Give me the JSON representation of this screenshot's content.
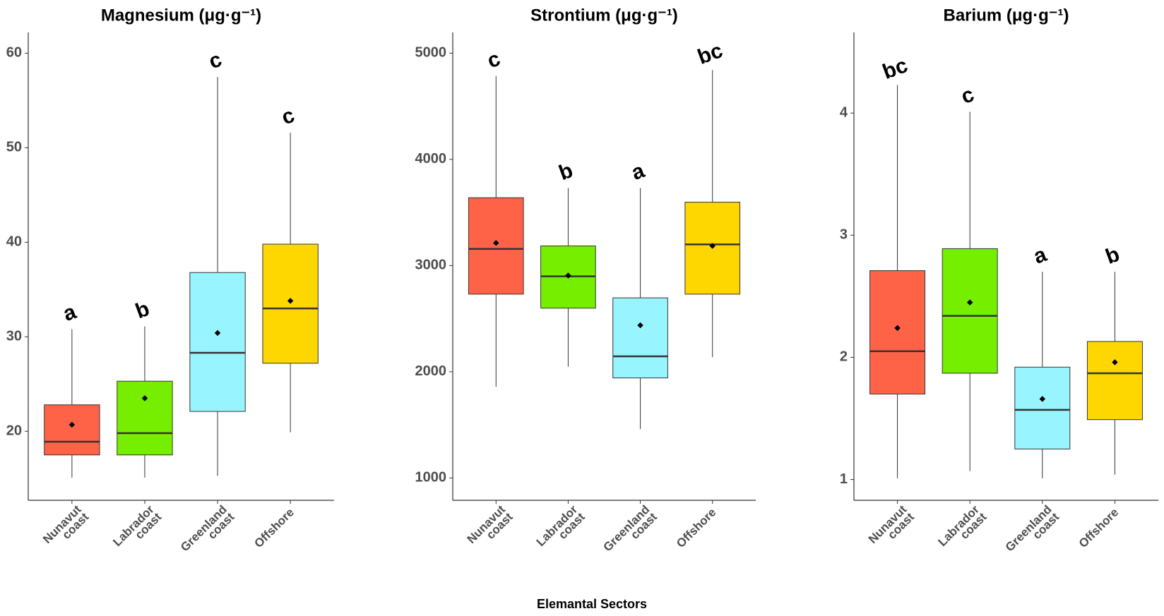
{
  "xlabel": "Elemantal Sectors",
  "chart_data": [
    {
      "type": "box",
      "title": "Magnesium (μg·g⁻¹)",
      "categories": [
        "Nunavut coast",
        "Labrador coast",
        "Greenland coast",
        "Offshore"
      ],
      "colors": [
        "#ff6347",
        "#76ee00",
        "#98f5ff",
        "#ffd700"
      ],
      "min": [
        15.1,
        15.1,
        15.3,
        19.9
      ],
      "q1": [
        17.5,
        17.5,
        22.1,
        27.2
      ],
      "median": [
        18.9,
        19.8,
        28.3,
        33.0
      ],
      "q3": [
        22.8,
        25.3,
        36.8,
        39.8
      ],
      "max": [
        30.8,
        31.1,
        57.5,
        51.6
      ],
      "mean": [
        20.7,
        23.5,
        30.4,
        33.8
      ],
      "letters": [
        "a",
        "b",
        "c",
        "c"
      ],
      "ylim": [
        12.7,
        62.2
      ],
      "yticks": [
        20,
        30,
        40,
        50,
        60
      ]
    },
    {
      "type": "box",
      "title": "Strontium (μg·g⁻¹)",
      "categories": [
        "Nunavut coast",
        "Labrador coast",
        "Greenland coast",
        "Offshore"
      ],
      "colors": [
        "#ff6347",
        "#76ee00",
        "#98f5ff",
        "#ffd700"
      ],
      "min": [
        1859,
        2047,
        1461,
        2138
      ],
      "q1": [
        2731,
        2599,
        1942,
        2731
      ],
      "median": [
        3157,
        2899,
        2145,
        3199
      ],
      "q3": [
        3639,
        3185,
        2696,
        3597
      ],
      "max": [
        4784,
        3730,
        3730,
        4840
      ],
      "mean": [
        3213,
        2906,
        2438,
        3185
      ],
      "letters": [
        "c",
        "b",
        "a",
        "bc"
      ],
      "ylim": [
        790,
        5195
      ],
      "yticks": [
        1000,
        2000,
        3000,
        4000,
        5000
      ]
    },
    {
      "type": "box",
      "title": "Barium (μg·g⁻¹)",
      "categories": [
        "Nunavut coast",
        "Labrador coast",
        "Greenland coast",
        "Offshore"
      ],
      "colors": [
        "#ff6347",
        "#76ee00",
        "#98f5ff",
        "#ffd700"
      ],
      "min": [
        1.01,
        1.07,
        1.01,
        1.04
      ],
      "q1": [
        1.7,
        1.87,
        1.25,
        1.49
      ],
      "median": [
        2.05,
        2.34,
        1.57,
        1.87
      ],
      "q3": [
        2.71,
        2.89,
        1.92,
        2.13
      ],
      "max": [
        4.23,
        4.01,
        2.7,
        2.7
      ],
      "mean": [
        2.24,
        2.45,
        1.66,
        1.96
      ],
      "letters": [
        "bc",
        "c",
        "a",
        "b"
      ],
      "ylim": [
        0.83,
        4.66
      ],
      "yticks": [
        1,
        2,
        3,
        4
      ]
    }
  ]
}
